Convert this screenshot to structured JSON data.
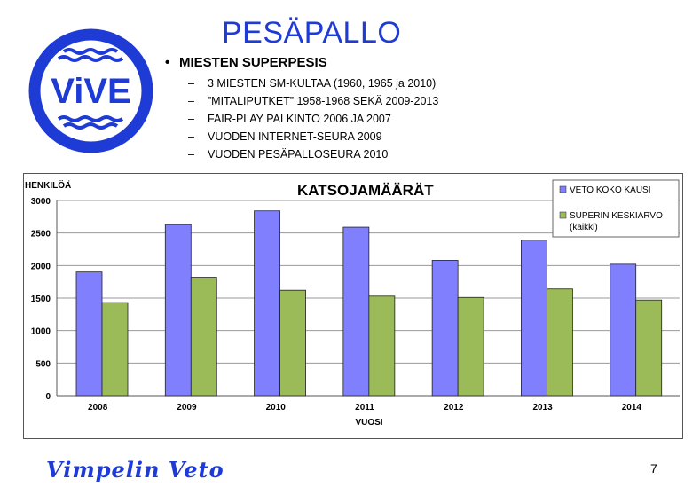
{
  "slide": {
    "title": "PESÄPALLO",
    "bullet": "MIESTEN SUPERPESIS",
    "sub_items": [
      "3 MIESTEN SM-KULTAA (1960, 1965 ja 2010)",
      "”MITALIPUTKET” 1958-1968 SEKÄ 2009-2013",
      "FAIR-PLAY PALKINTO 2006 JA 2007",
      "VUODEN INTERNET-SEURA 2009",
      "VUODEN PESÄPALLOSEURA 2010"
    ],
    "footer_text": "Vimpelin Veto",
    "page_number": "7"
  },
  "logo": {
    "text": "ViVE",
    "color": "#1e3bd6"
  },
  "chart_data": {
    "type": "bar",
    "title": "KATSOJAMÄÄRÄT",
    "xlabel": "VUOSI",
    "ylabel": "HENKILÖÄ",
    "categories": [
      "2008",
      "2009",
      "2010",
      "2011",
      "2012",
      "2013",
      "2014"
    ],
    "ylim": [
      0,
      3000
    ],
    "yticks": [
      "0",
      "500",
      "1000",
      "1500",
      "2000",
      "2500",
      "3000"
    ],
    "grid": true,
    "legend_position": "top-right",
    "series": [
      {
        "name": "VETO KOKO KAUSI",
        "color": "#8080ff",
        "values": [
          1900,
          2630,
          2840,
          2590,
          2080,
          2390,
          2020
        ]
      },
      {
        "name": "SUPERIN KESKIARVO (kaikki)",
        "color": "#9bbb59",
        "values": [
          1430,
          1820,
          1620,
          1530,
          1510,
          1640,
          1470
        ]
      }
    ]
  }
}
